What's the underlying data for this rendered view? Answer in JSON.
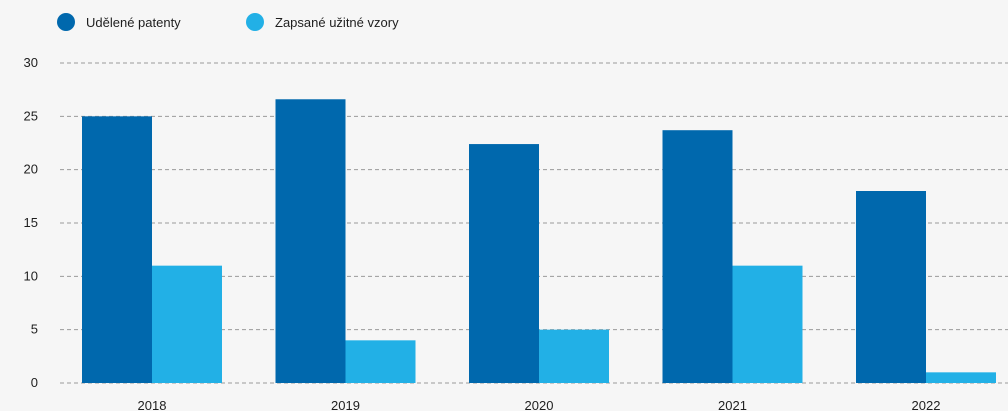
{
  "chart_data": {
    "type": "bar",
    "categories": [
      "2018",
      "2019",
      "2020",
      "2021",
      "2022"
    ],
    "series": [
      {
        "name": "Udělené patenty",
        "values": [
          25,
          26.6,
          22.4,
          23.7,
          18
        ],
        "color": "#0068ad"
      },
      {
        "name": "Zapsané užitné vzory",
        "values": [
          11,
          4,
          5,
          11,
          1
        ],
        "color": "#22b0e6"
      }
    ],
    "ylim": [
      0,
      30
    ],
    "yticks": [
      "0",
      "5",
      "10",
      "15",
      "20",
      "25",
      "30"
    ],
    "grid": true,
    "legend_position": "top-left",
    "title": "",
    "xlabel": "",
    "ylabel": ""
  },
  "colors": {
    "background": "#f6f6f6",
    "gridline": "#9a9a9a",
    "text": "#1e1e1e"
  }
}
